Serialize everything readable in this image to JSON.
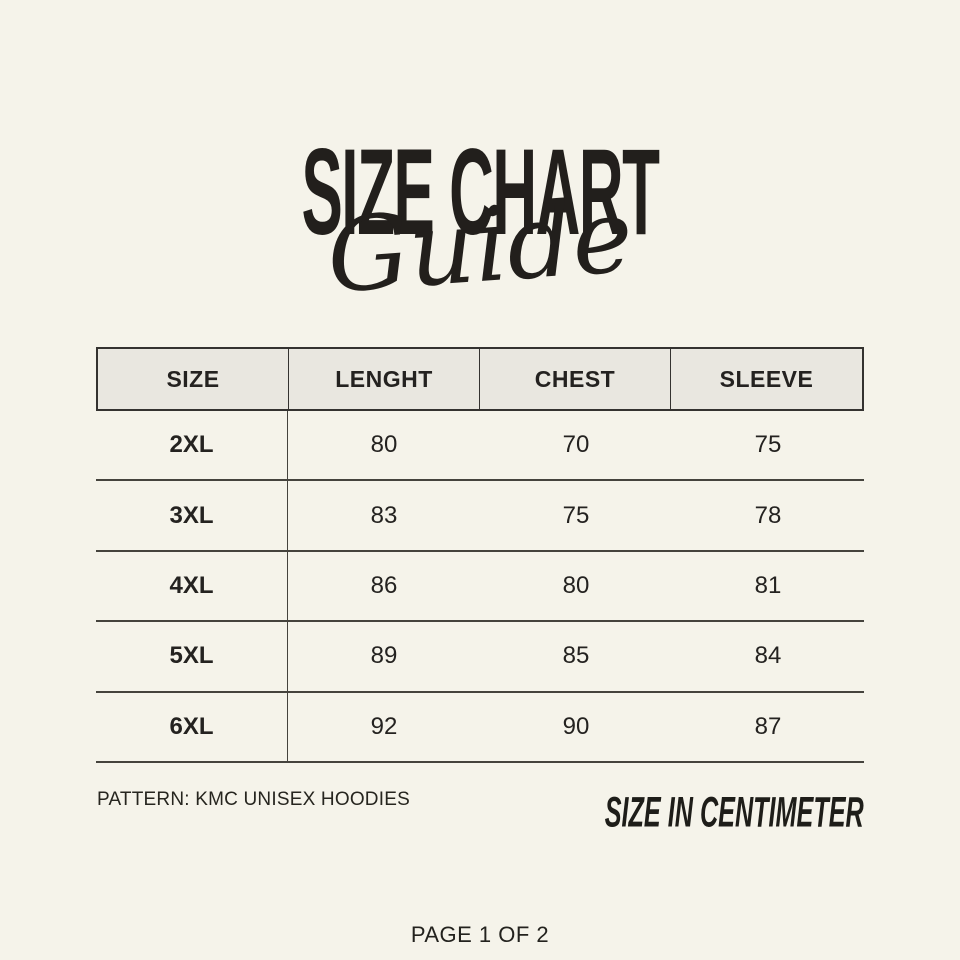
{
  "header": {
    "title": "SIZE CHART",
    "subtitle": "Guide"
  },
  "table": {
    "headers": [
      "SIZE",
      "LENGHT",
      "CHEST",
      "SLEEVE"
    ],
    "rows": [
      {
        "size": "2XL",
        "length": "80",
        "chest": "70",
        "sleeve": "75"
      },
      {
        "size": "3XL",
        "length": "83",
        "chest": "75",
        "sleeve": "78"
      },
      {
        "size": "4XL",
        "length": "86",
        "chest": "80",
        "sleeve": "81"
      },
      {
        "size": "5XL",
        "length": "89",
        "chest": "85",
        "sleeve": "84"
      },
      {
        "size": "6XL",
        "length": "92",
        "chest": "90",
        "sleeve": "87"
      }
    ]
  },
  "footer": {
    "pattern_note": "PATTERN: KMC UNISEX HOODIES",
    "unit_note": "SIZE IN CENTIMETER",
    "page_indicator": "PAGE 1 OF 2"
  },
  "colors": {
    "background": "#F5F3EA",
    "header_cell_fill": "#E9E7E0",
    "line": "#3B3935",
    "text": "#221F1C"
  }
}
